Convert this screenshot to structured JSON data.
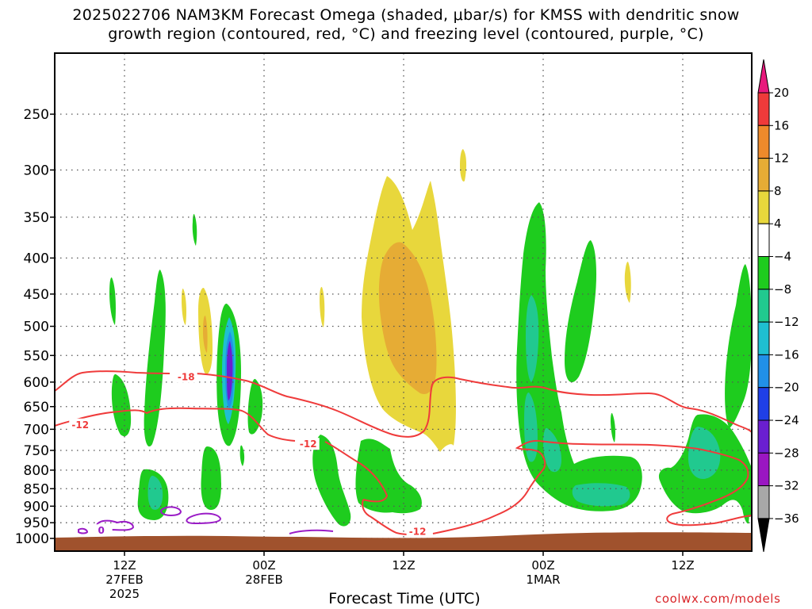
{
  "title_line1": "2025022706 NAM3KM Forecast Omega (shaded, μbar/s) for KMSS with dendritic snow",
  "title_line2": "growth region (contoured, red, °C) and freezing level (contoured, purple, °C)",
  "x_axis_title": "Forecast Time (UTC)",
  "credit": "coolwx.com/models",
  "colors": {
    "dgz_contour": "#ef3b3b",
    "freezing_contour": "#9a1cc6",
    "terrain": "#a0522d",
    "grid": "#555555"
  },
  "chart_data": {
    "type": "heatmap",
    "title": "2025022706 NAM3KM Forecast Omega (shaded, μbar/s) for KMSS with dendritic snow growth region (contoured, red, °C) and freezing level (contoured, purple, °C)",
    "xlabel": "Forecast Time (UTC)",
    "ylabel": "",
    "y_scale": "log (pressure, hPa), inverted",
    "y_ticks": [
      250,
      300,
      350,
      400,
      450,
      500,
      550,
      600,
      650,
      700,
      750,
      800,
      850,
      900,
      950,
      1000
    ],
    "x_ticks": [
      {
        "hour": 6,
        "label": "12Z",
        "sub1": "27FEB",
        "sub2": "2025"
      },
      {
        "hour": 18,
        "label": "00Z",
        "sub1": "28FEB",
        "sub2": ""
      },
      {
        "hour": 30,
        "label": "12Z",
        "sub1": "",
        "sub2": ""
      },
      {
        "hour": 42,
        "label": "00Z",
        "sub1": "1MAR",
        "sub2": ""
      },
      {
        "hour": 54,
        "label": "12Z",
        "sub1": "",
        "sub2": ""
      }
    ],
    "xlim_forecast_hour": [
      0,
      60
    ],
    "colorbar": {
      "labels": [
        "20",
        "16",
        "12",
        "8",
        "4",
        "−4",
        "−8",
        "−12",
        "−16",
        "−20",
        "−24",
        "−28",
        "−32",
        "−36"
      ],
      "bins": [
        {
          "range": ">20",
          "color": "#e8197c"
        },
        {
          "range": "16 to 20",
          "color": "#ef3a3a"
        },
        {
          "range": "12 to 16",
          "color": "#ee8a2b"
        },
        {
          "range": "8 to 12",
          "color": "#e6ac35"
        },
        {
          "range": "4 to 8",
          "color": "#e8d73c"
        },
        {
          "range": "-4 to 4",
          "color": "#ffffff"
        },
        {
          "range": "-8 to -4",
          "color": "#1ecc1e"
        },
        {
          "range": "-12 to -8",
          "color": "#21c98f"
        },
        {
          "range": "-16 to -12",
          "color": "#1fbfd1"
        },
        {
          "range": "-20 to -16",
          "color": "#2190e8"
        },
        {
          "range": "-24 to -20",
          "color": "#1f3fe6"
        },
        {
          "range": "-28 to -24",
          "color": "#6a1fd0"
        },
        {
          "range": "-32 to -28",
          "color": "#9a16c2"
        },
        {
          "range": "-36 to -32",
          "color": "#a8a8a8"
        },
        {
          "range": "<-36",
          "color": "#000000"
        }
      ]
    },
    "contour_labels": [
      {
        "text": "-18",
        "color": "red",
        "hour": 11.3,
        "hpa": 590
      },
      {
        "text": "-12",
        "color": "red",
        "hour": 2.2,
        "hpa": 690
      },
      {
        "text": "-12",
        "color": "red",
        "hour": 21.8,
        "hpa": 735
      },
      {
        "text": "-12",
        "color": "red",
        "hour": 31.2,
        "hpa": 978
      },
      {
        "text": "0",
        "color": "purple",
        "hour": 4.0,
        "hpa": 975
      }
    ]
  }
}
